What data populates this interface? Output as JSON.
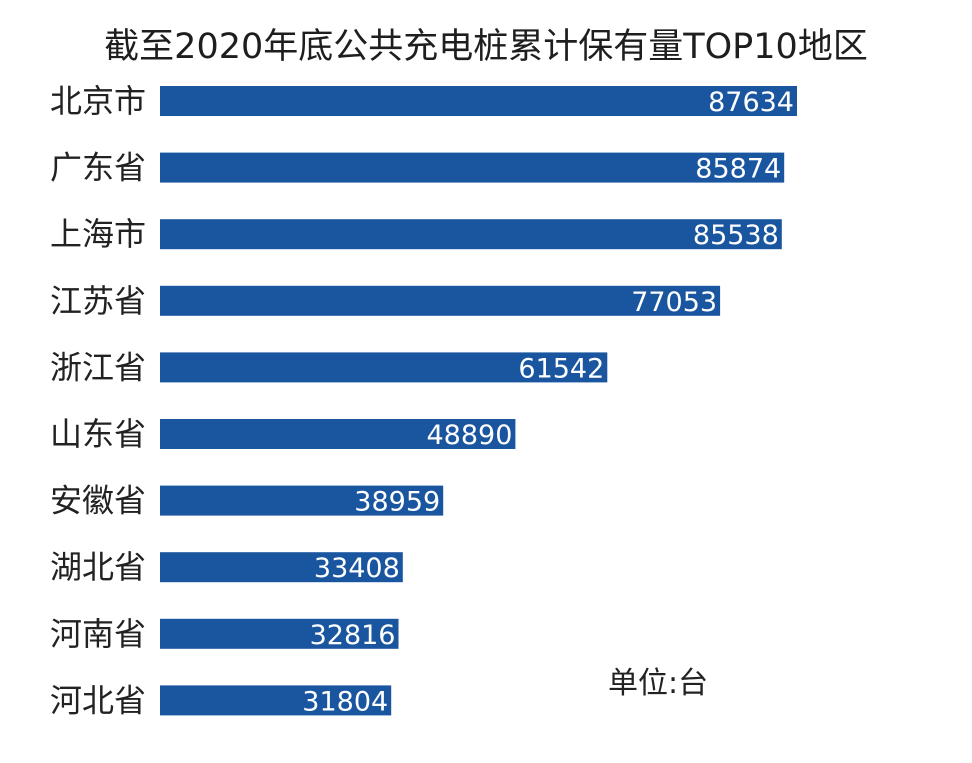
{
  "chart_data": {
    "type": "bar",
    "orientation": "horizontal",
    "title": "截至2020年底公共充电桩累计保有量TOP10地区",
    "unit_note": "单位:台",
    "categories": [
      "北京市",
      "广东省",
      "上海市",
      "江苏省",
      "浙江省",
      "山东省",
      "安徽省",
      "湖北省",
      "河南省",
      "河北省"
    ],
    "values": [
      87634,
      85874,
      85538,
      77053,
      61542,
      48890,
      38959,
      33408,
      32816,
      31804
    ],
    "data_labels": true,
    "bar_color": "#1a56a0",
    "grid": false,
    "legend": "none"
  }
}
